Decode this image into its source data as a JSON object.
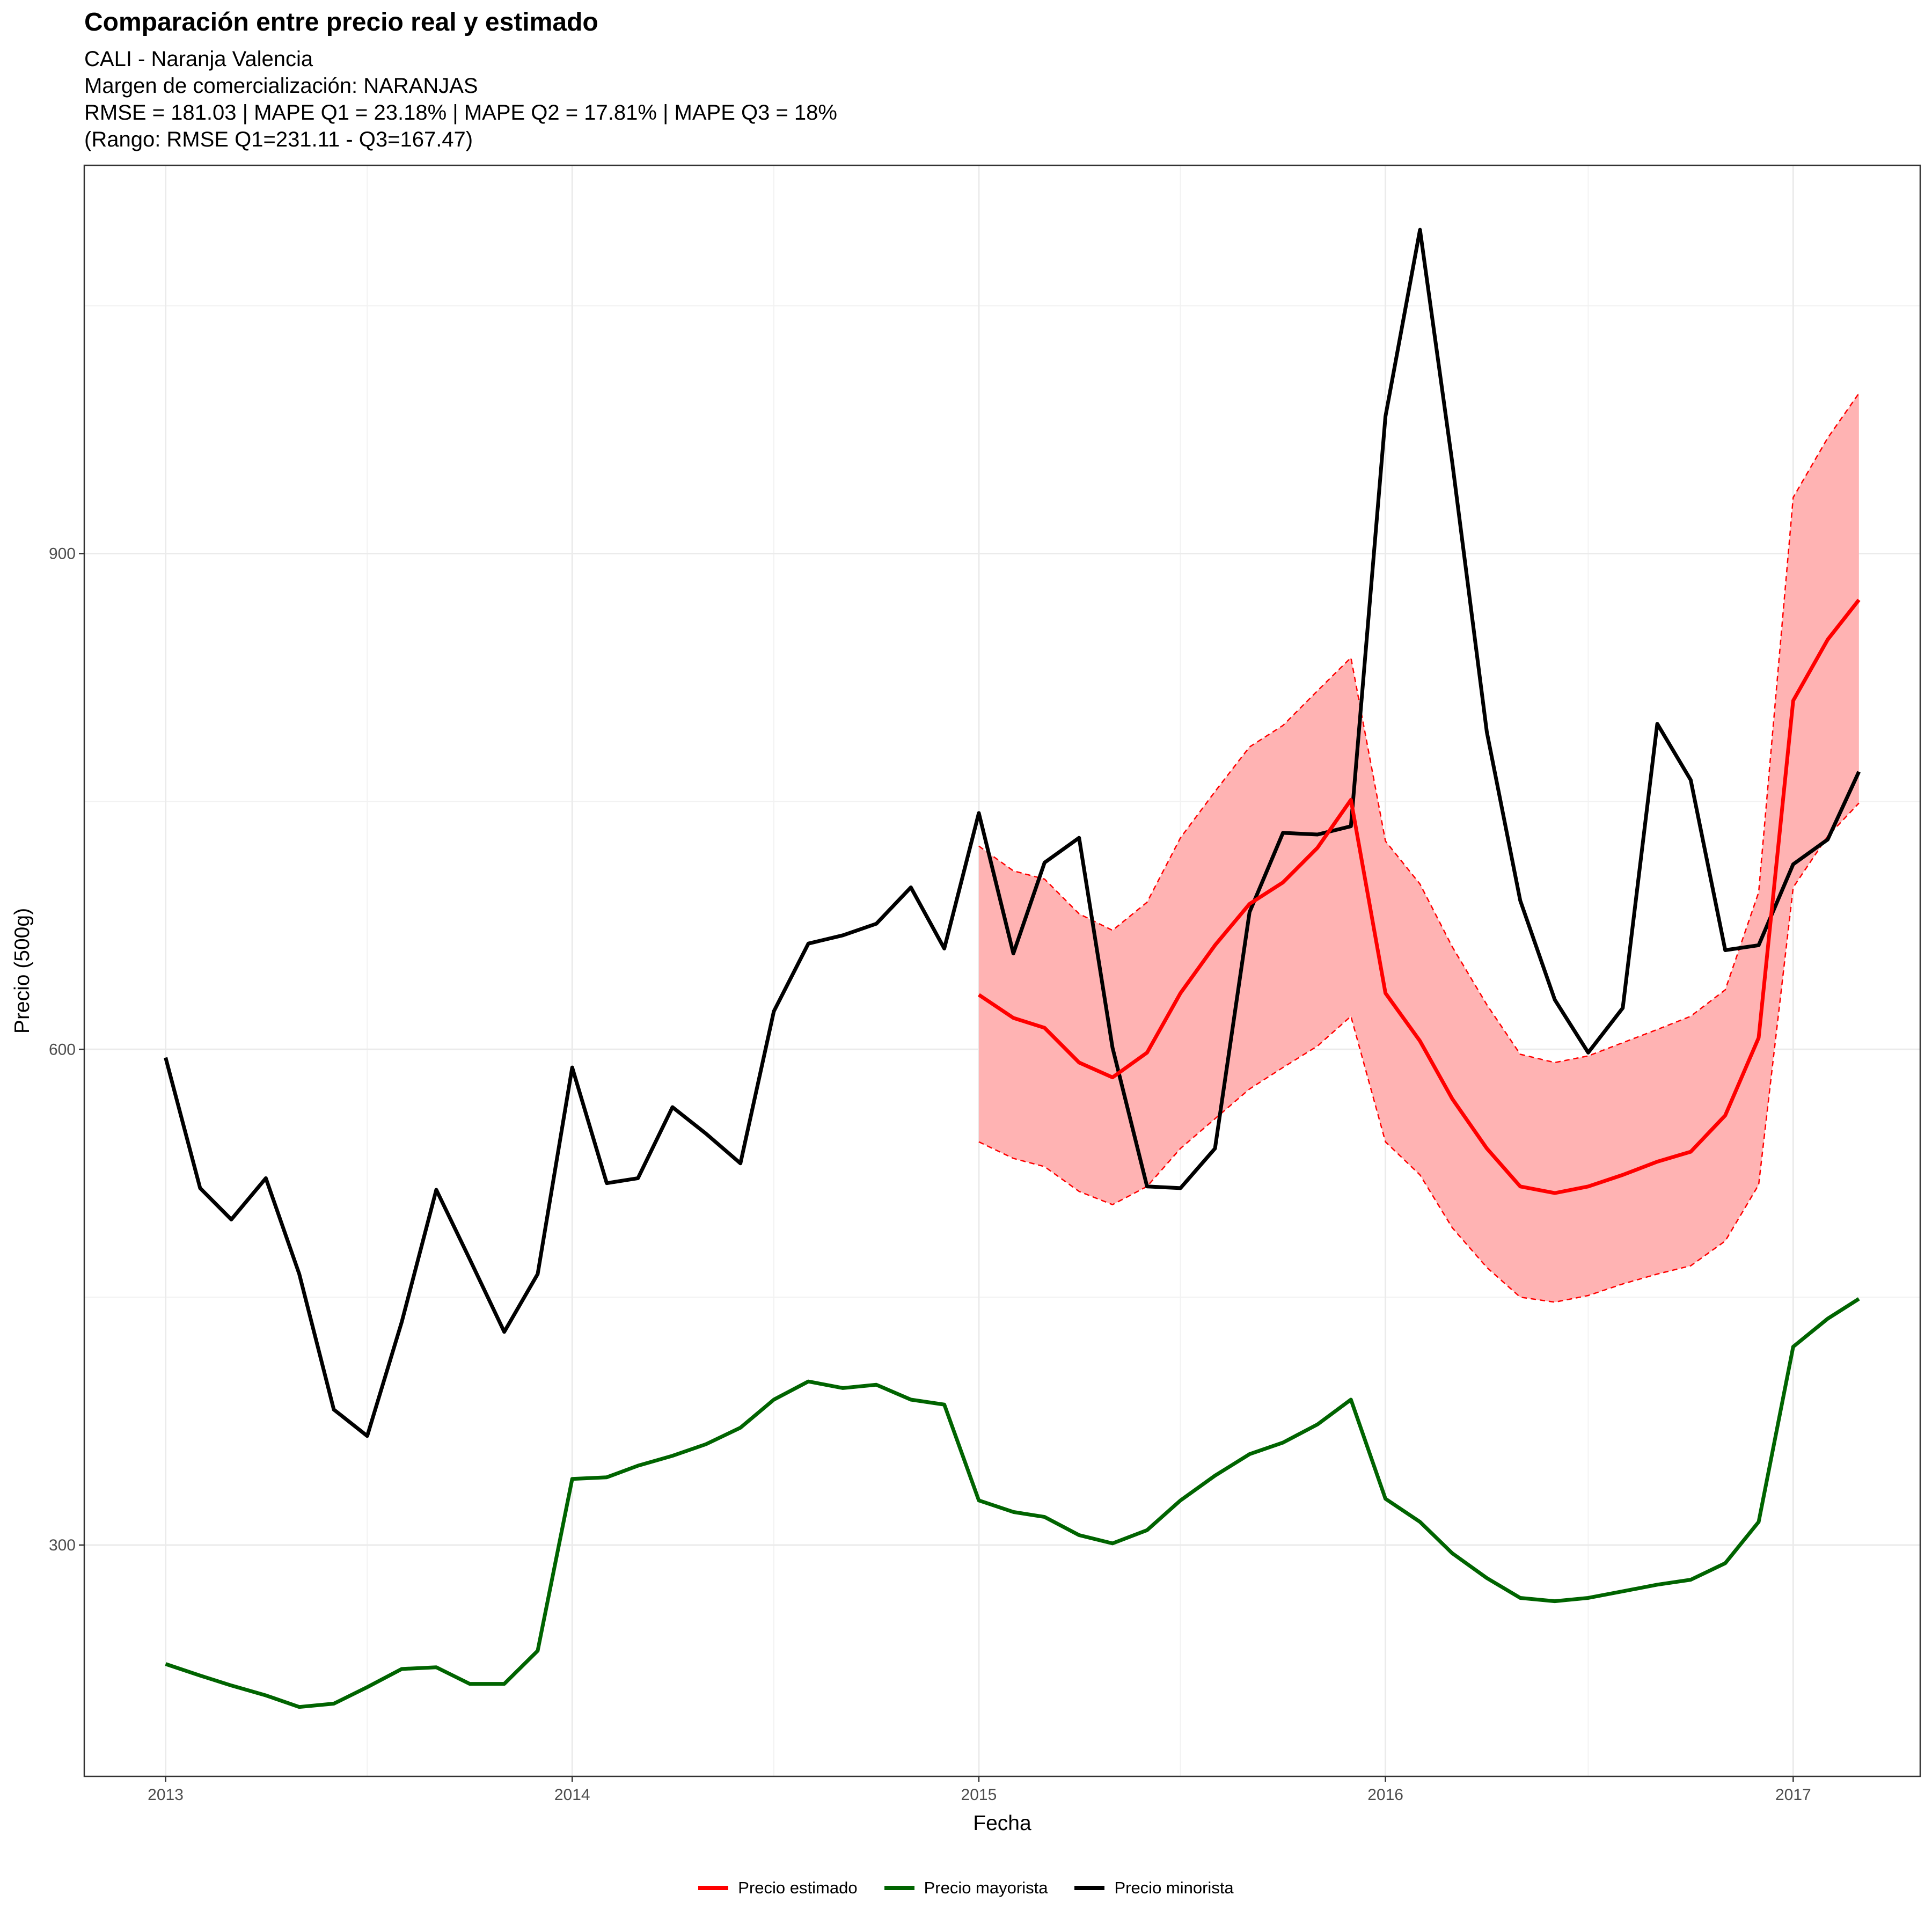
{
  "chart_data": {
    "type": "line",
    "title": "Comparación entre precio real y estimado",
    "subtitle_lines": [
      "CALI - Naranja Valencia",
      "Margen de comercialización: NARANJAS",
      "RMSE = 181.03 | MAPE Q1 = 23.18% | MAPE Q2 = 17.81% | MAPE Q3 = 18%",
      "(Rango: RMSE Q1=231.11 - Q3=167.47)"
    ],
    "xlabel": "Fecha",
    "ylabel": "Precio (500g)",
    "x_ticks": [
      "2013",
      "2014",
      "2015",
      "2016",
      "2017"
    ],
    "y_ticks": [
      300,
      600,
      900
    ],
    "xlim": [
      "2012-10-20",
      "2017-04-25"
    ],
    "ylim": [
      160,
      1135
    ],
    "grid": true,
    "legend_position": "bottom",
    "colors": {
      "estimado": "#ff0000",
      "band": "#ffb3b3",
      "mayorista": "#006400",
      "minorista": "#000000"
    },
    "legend": [
      {
        "key": "estimado",
        "label": "Precio estimado"
      },
      {
        "key": "mayorista",
        "label": "Precio mayorista"
      },
      {
        "key": "minorista",
        "label": "Precio minorista"
      }
    ],
    "minorista": {
      "x": [
        "2013-01",
        "2013-02",
        "2013-03",
        "2013-04",
        "2013-05",
        "2013-06",
        "2013-07",
        "2013-08",
        "2013-09",
        "2013-10",
        "2013-11",
        "2013-12",
        "2014-01",
        "2014-02",
        "2014-03",
        "2014-04",
        "2014-05",
        "2014-06",
        "2014-07",
        "2014-08",
        "2014-09",
        "2014-10",
        "2014-11",
        "2014-12",
        "2015-01",
        "2015-02",
        "2015-03",
        "2015-04",
        "2015-05",
        "2015-06",
        "2015-07",
        "2015-08",
        "2015-09",
        "2015-10",
        "2015-11",
        "2015-12",
        "2016-01",
        "2016-02",
        "2016-03",
        "2016-04",
        "2016-05",
        "2016-06",
        "2016-07",
        "2016-08",
        "2016-09",
        "2016-10",
        "2016-11",
        "2016-12",
        "2017-01",
        "2017-02",
        "2017-03"
      ],
      "y": [
        595,
        516,
        497,
        522,
        464,
        382,
        366,
        435,
        515,
        473,
        429,
        464,
        589,
        519,
        522,
        565,
        549,
        531,
        623,
        664,
        669,
        676,
        698,
        661,
        743,
        658,
        713,
        728,
        601,
        517,
        516,
        540,
        683,
        731,
        730,
        735,
        983,
        1096,
        955,
        792,
        690,
        630,
        598,
        625,
        797,
        763,
        660,
        663,
        712,
        727,
        768
      ]
    },
    "mayorista": {
      "x": [
        "2013-01",
        "2013-02",
        "2013-03",
        "2013-04",
        "2013-05",
        "2013-06",
        "2013-07",
        "2013-08",
        "2013-09",
        "2013-10",
        "2013-11",
        "2013-12",
        "2014-01",
        "2014-02",
        "2014-03",
        "2014-04",
        "2014-05",
        "2014-06",
        "2014-07",
        "2014-08",
        "2014-09",
        "2014-10",
        "2014-11",
        "2014-12",
        "2015-01",
        "2015-02",
        "2015-03",
        "2015-04",
        "2015-05",
        "2015-06",
        "2015-07",
        "2015-08",
        "2015-09",
        "2015-10",
        "2015-11",
        "2015-12",
        "2016-01",
        "2016-02",
        "2016-03",
        "2016-04",
        "2016-05",
        "2016-06",
        "2016-07",
        "2016-08",
        "2016-09",
        "2016-10",
        "2016-11",
        "2016-12",
        "2017-01",
        "2017-02",
        "2017-03"
      ],
      "y": [
        228,
        221,
        215,
        209,
        202,
        204,
        214,
        225,
        226,
        216,
        216,
        236,
        340,
        341,
        348,
        354,
        361,
        371,
        388,
        399,
        395,
        397,
        388,
        385,
        327,
        320,
        317,
        306,
        301,
        309,
        327,
        342,
        355,
        362,
        373,
        388,
        328,
        314,
        295,
        280,
        268,
        266,
        268,
        272,
        276,
        279,
        289,
        314,
        420,
        437,
        449
      ]
    },
    "estimado": {
      "x": [
        "2015-01",
        "2015-02",
        "2015-03",
        "2015-04",
        "2015-05",
        "2015-06",
        "2015-07",
        "2015-08",
        "2015-09",
        "2015-10",
        "2015-11",
        "2015-12",
        "2016-01",
        "2016-02",
        "2016-03",
        "2016-04",
        "2016-05",
        "2016-06",
        "2016-07",
        "2016-08",
        "2016-09",
        "2016-10",
        "2016-11",
        "2016-12",
        "2017-01",
        "2017-02",
        "2017-03"
      ],
      "y": [
        633,
        619,
        613,
        592,
        583,
        598,
        634,
        663,
        688,
        701,
        722,
        751,
        634,
        605,
        570,
        540,
        517,
        513,
        517,
        524,
        532,
        538,
        560,
        607,
        811,
        848,
        872
      ],
      "lower": [
        544,
        534,
        529,
        514,
        506,
        517,
        540,
        558,
        576,
        589,
        602,
        620,
        544,
        524,
        492,
        468,
        450,
        447,
        451,
        458,
        464,
        469,
        484,
        518,
        698,
        729,
        749
      ],
      "upper": [
        723,
        708,
        703,
        682,
        672,
        689,
        728,
        756,
        783,
        796,
        817,
        837,
        726,
        700,
        662,
        627,
        597,
        592,
        596,
        604,
        612,
        620,
        636,
        695,
        934,
        970,
        997
      ]
    }
  }
}
